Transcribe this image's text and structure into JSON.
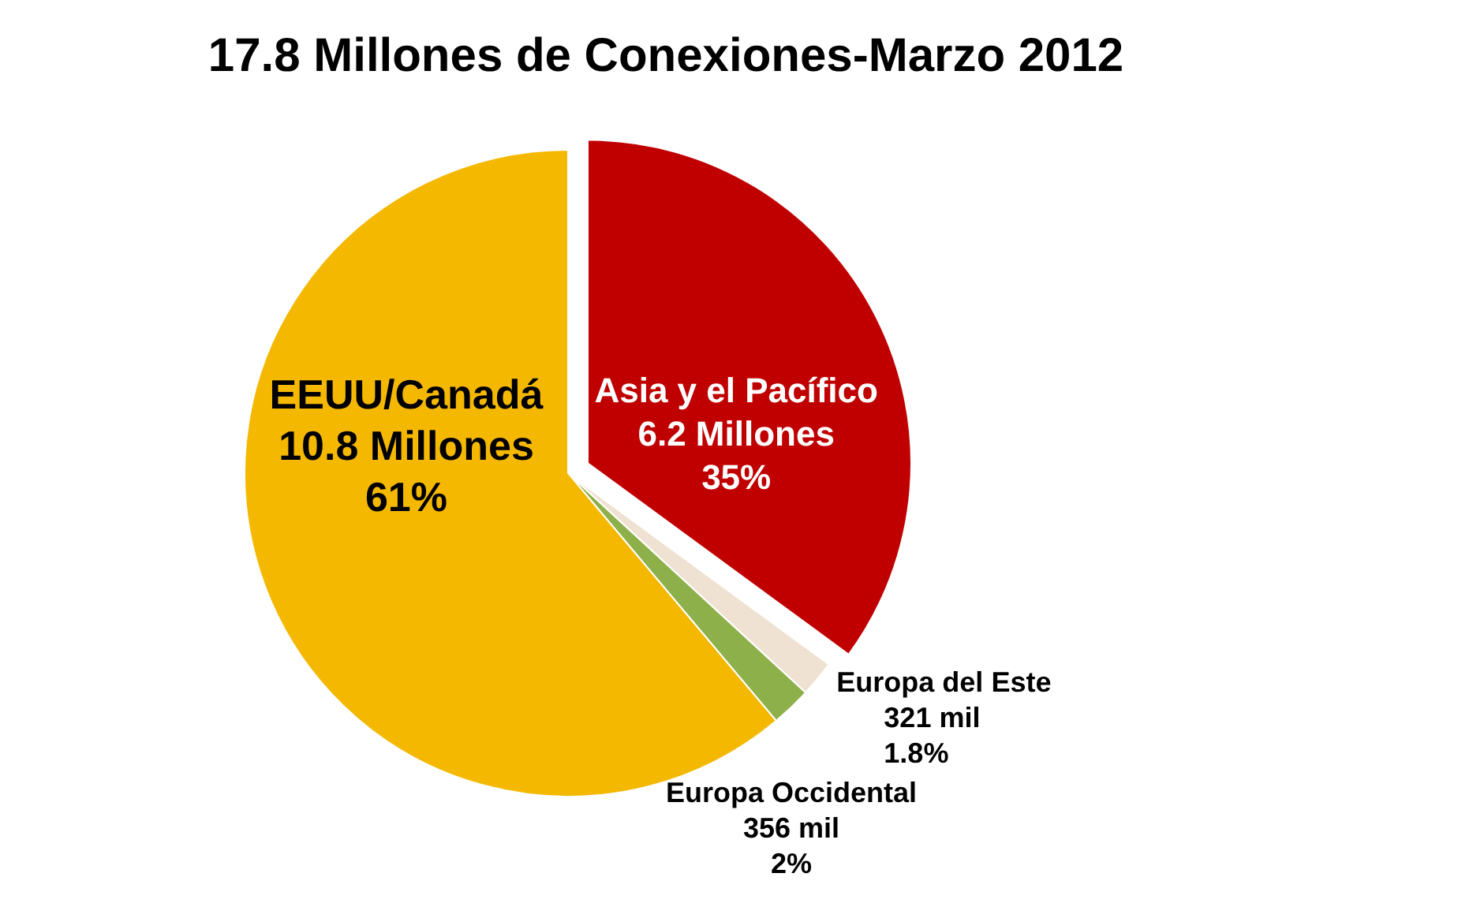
{
  "chart_data": {
    "type": "pie",
    "title": "17.8 Millones de Conexiones-Marzo 2012",
    "categories": [
      "Asia y el Pacífico",
      "Europa del Este",
      "Europa Occidental",
      "EEUU/Canadá"
    ],
    "values": [
      35,
      1.8,
      2,
      61
    ],
    "colors": [
      "#c00000",
      "#f0e2d2",
      "#8db04a",
      "#f5b800"
    ],
    "value_labels": [
      "6.2 Millones\n35%",
      "321 mil\n1.8%",
      "356 mil\n2%",
      "10.8 Millones\n61%"
    ]
  }
}
